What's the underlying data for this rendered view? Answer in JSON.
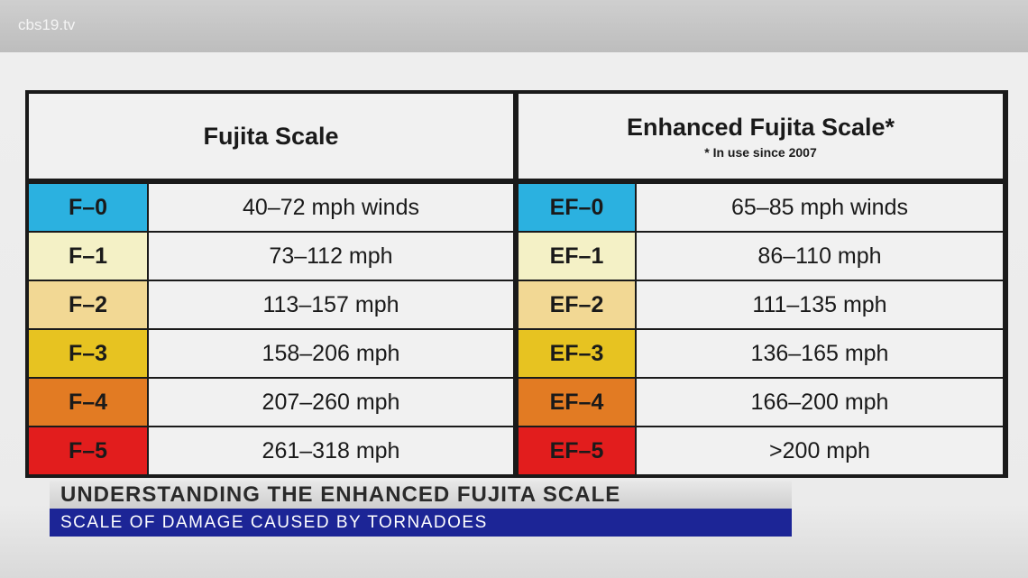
{
  "watermark": "cbs19.tv",
  "table": {
    "headers": [
      {
        "title": "Fujita Scale"
      },
      {
        "title": "Enhanced Fujita Scale*",
        "note": "* In use since 2007"
      }
    ],
    "rows": [
      [
        "F–0",
        "40–72 mph winds",
        "EF–0",
        "65–85 mph winds"
      ],
      [
        "F–1",
        "73–112 mph",
        "EF–1",
        "86–110 mph"
      ],
      [
        "F–2",
        "113–157 mph",
        "EF–2",
        "111–135 mph"
      ],
      [
        "F–3",
        "158–206 mph",
        "EF–3",
        "136–165 mph"
      ],
      [
        "F–4",
        "207–260 mph",
        "EF–4",
        "166–200 mph"
      ],
      [
        "F–5",
        "261–318 mph",
        "EF–5",
        ">200 mph"
      ]
    ]
  },
  "lower_third": {
    "headline": "UNDERSTANDING THE ENHANCED FUJITA SCALE",
    "subline": "SCALE OF DAMAGE CAUSED BY TORNADOES"
  }
}
